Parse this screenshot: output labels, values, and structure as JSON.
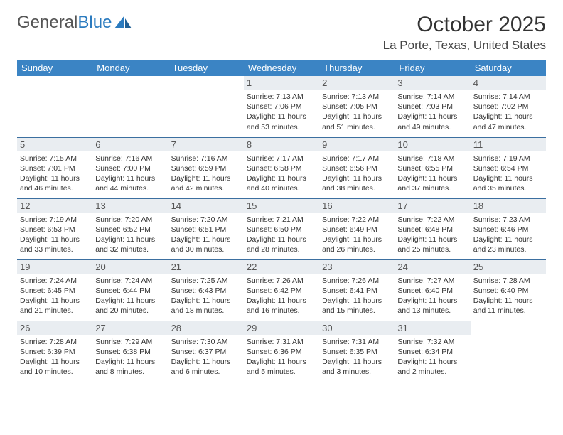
{
  "logo": {
    "text1": "General",
    "text2": "Blue"
  },
  "title": "October 2025",
  "location": "La Porte, Texas, United States",
  "colors": {
    "header_bg": "#3b84c4",
    "header_text": "#ffffff",
    "daynum_bg": "#e9edf1",
    "row_border": "#3b6fa0",
    "logo_blue": "#2b7bbf"
  },
  "weekdays": [
    "Sunday",
    "Monday",
    "Tuesday",
    "Wednesday",
    "Thursday",
    "Friday",
    "Saturday"
  ],
  "days": {
    "1": {
      "sunrise": "7:13 AM",
      "sunset": "7:06 PM",
      "daylight": "11 hours and 53 minutes."
    },
    "2": {
      "sunrise": "7:13 AM",
      "sunset": "7:05 PM",
      "daylight": "11 hours and 51 minutes."
    },
    "3": {
      "sunrise": "7:14 AM",
      "sunset": "7:03 PM",
      "daylight": "11 hours and 49 minutes."
    },
    "4": {
      "sunrise": "7:14 AM",
      "sunset": "7:02 PM",
      "daylight": "11 hours and 47 minutes."
    },
    "5": {
      "sunrise": "7:15 AM",
      "sunset": "7:01 PM",
      "daylight": "11 hours and 46 minutes."
    },
    "6": {
      "sunrise": "7:16 AM",
      "sunset": "7:00 PM",
      "daylight": "11 hours and 44 minutes."
    },
    "7": {
      "sunrise": "7:16 AM",
      "sunset": "6:59 PM",
      "daylight": "11 hours and 42 minutes."
    },
    "8": {
      "sunrise": "7:17 AM",
      "sunset": "6:58 PM",
      "daylight": "11 hours and 40 minutes."
    },
    "9": {
      "sunrise": "7:17 AM",
      "sunset": "6:56 PM",
      "daylight": "11 hours and 38 minutes."
    },
    "10": {
      "sunrise": "7:18 AM",
      "sunset": "6:55 PM",
      "daylight": "11 hours and 37 minutes."
    },
    "11": {
      "sunrise": "7:19 AM",
      "sunset": "6:54 PM",
      "daylight": "11 hours and 35 minutes."
    },
    "12": {
      "sunrise": "7:19 AM",
      "sunset": "6:53 PM",
      "daylight": "11 hours and 33 minutes."
    },
    "13": {
      "sunrise": "7:20 AM",
      "sunset": "6:52 PM",
      "daylight": "11 hours and 32 minutes."
    },
    "14": {
      "sunrise": "7:20 AM",
      "sunset": "6:51 PM",
      "daylight": "11 hours and 30 minutes."
    },
    "15": {
      "sunrise": "7:21 AM",
      "sunset": "6:50 PM",
      "daylight": "11 hours and 28 minutes."
    },
    "16": {
      "sunrise": "7:22 AM",
      "sunset": "6:49 PM",
      "daylight": "11 hours and 26 minutes."
    },
    "17": {
      "sunrise": "7:22 AM",
      "sunset": "6:48 PM",
      "daylight": "11 hours and 25 minutes."
    },
    "18": {
      "sunrise": "7:23 AM",
      "sunset": "6:46 PM",
      "daylight": "11 hours and 23 minutes."
    },
    "19": {
      "sunrise": "7:24 AM",
      "sunset": "6:45 PM",
      "daylight": "11 hours and 21 minutes."
    },
    "20": {
      "sunrise": "7:24 AM",
      "sunset": "6:44 PM",
      "daylight": "11 hours and 20 minutes."
    },
    "21": {
      "sunrise": "7:25 AM",
      "sunset": "6:43 PM",
      "daylight": "11 hours and 18 minutes."
    },
    "22": {
      "sunrise": "7:26 AM",
      "sunset": "6:42 PM",
      "daylight": "11 hours and 16 minutes."
    },
    "23": {
      "sunrise": "7:26 AM",
      "sunset": "6:41 PM",
      "daylight": "11 hours and 15 minutes."
    },
    "24": {
      "sunrise": "7:27 AM",
      "sunset": "6:40 PM",
      "daylight": "11 hours and 13 minutes."
    },
    "25": {
      "sunrise": "7:28 AM",
      "sunset": "6:40 PM",
      "daylight": "11 hours and 11 minutes."
    },
    "26": {
      "sunrise": "7:28 AM",
      "sunset": "6:39 PM",
      "daylight": "11 hours and 10 minutes."
    },
    "27": {
      "sunrise": "7:29 AM",
      "sunset": "6:38 PM",
      "daylight": "11 hours and 8 minutes."
    },
    "28": {
      "sunrise": "7:30 AM",
      "sunset": "6:37 PM",
      "daylight": "11 hours and 6 minutes."
    },
    "29": {
      "sunrise": "7:31 AM",
      "sunset": "6:36 PM",
      "daylight": "11 hours and 5 minutes."
    },
    "30": {
      "sunrise": "7:31 AM",
      "sunset": "6:35 PM",
      "daylight": "11 hours and 3 minutes."
    },
    "31": {
      "sunrise": "7:32 AM",
      "sunset": "6:34 PM",
      "daylight": "11 hours and 2 minutes."
    }
  },
  "layout": {
    "first_weekday_index": 3,
    "num_days": 31,
    "labels": {
      "sunrise": "Sunrise: ",
      "sunset": "Sunset: ",
      "daylight": "Daylight: "
    }
  }
}
